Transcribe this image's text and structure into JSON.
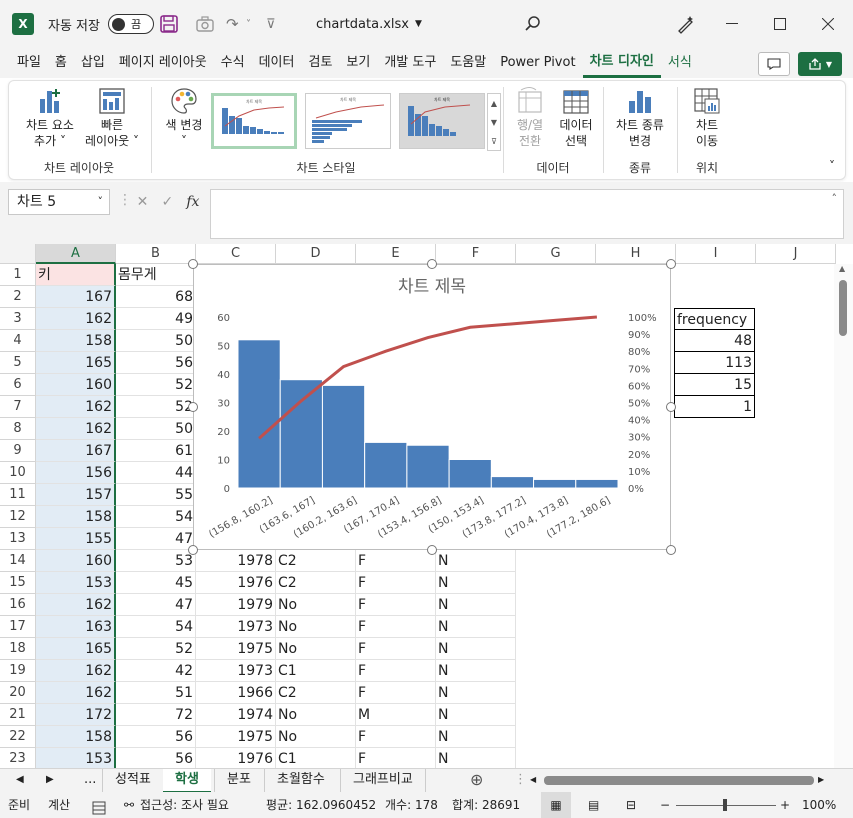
{
  "titlebar": {
    "autosave_label": "자동 저장",
    "autosave_state": "끔",
    "doc_title": "chartdata.xlsx",
    "logo": "X"
  },
  "menu": {
    "tabs": [
      "파일",
      "홈",
      "삽입",
      "페이지 레이아웃",
      "수식",
      "데이터",
      "검토",
      "보기",
      "개발 도구",
      "도움말",
      "Power Pivot",
      "차트 디자인",
      "서식"
    ],
    "active": "차트 디자인"
  },
  "ribbon": {
    "add_element": [
      "차트 요소",
      "추가 ˅"
    ],
    "quick_layout": [
      "빠른",
      "레이아웃 ˅"
    ],
    "layout_group": "차트 레이아웃",
    "change_color": [
      "색 변경",
      "˅"
    ],
    "style_group": "차트 스타일",
    "switch_row_col": [
      "행/열",
      "전환"
    ],
    "select_data": [
      "데이터",
      "선택"
    ],
    "data_group": "데이터",
    "change_type": [
      "차트 종류",
      "변경"
    ],
    "type_group": "종류",
    "move_chart": [
      "차트",
      "이동"
    ],
    "location_group": "위치",
    "thumb_title": "차트 제목"
  },
  "formula": {
    "namebox": "차트 5",
    "fx": "fx",
    "value": ""
  },
  "columns": [
    "A",
    "B",
    "C",
    "D",
    "E",
    "F",
    "G",
    "H",
    "I",
    "J"
  ],
  "rows": [
    {
      "n": "1",
      "A": "키",
      "B": "몸무게",
      "C": "",
      "D": "",
      "E": "",
      "F": ""
    },
    {
      "n": "2",
      "A": "167",
      "B": "68",
      "C": "",
      "D": "",
      "E": "",
      "F": ""
    },
    {
      "n": "3",
      "A": "162",
      "B": "49",
      "C": "",
      "D": "",
      "E": "",
      "F": ""
    },
    {
      "n": "4",
      "A": "158",
      "B": "50",
      "C": "",
      "D": "",
      "E": "",
      "F": ""
    },
    {
      "n": "5",
      "A": "165",
      "B": "56",
      "C": "",
      "D": "",
      "E": "",
      "F": ""
    },
    {
      "n": "6",
      "A": "160",
      "B": "52",
      "C": "",
      "D": "",
      "E": "",
      "F": ""
    },
    {
      "n": "7",
      "A": "162",
      "B": "52",
      "C": "",
      "D": "",
      "E": "",
      "F": ""
    },
    {
      "n": "8",
      "A": "162",
      "B": "50",
      "C": "",
      "D": "",
      "E": "",
      "F": ""
    },
    {
      "n": "9",
      "A": "167",
      "B": "61",
      "C": "",
      "D": "",
      "E": "",
      "F": ""
    },
    {
      "n": "10",
      "A": "156",
      "B": "44",
      "C": "",
      "D": "",
      "E": "",
      "F": ""
    },
    {
      "n": "11",
      "A": "157",
      "B": "55",
      "C": "",
      "D": "",
      "E": "",
      "F": ""
    },
    {
      "n": "12",
      "A": "158",
      "B": "54",
      "C": "",
      "D": "",
      "E": "",
      "F": ""
    },
    {
      "n": "13",
      "A": "155",
      "B": "47",
      "C": "",
      "D": "",
      "E": "",
      "F": ""
    },
    {
      "n": "14",
      "A": "160",
      "B": "53",
      "C": "1978",
      "D": "C2",
      "E": "F",
      "F": "N"
    },
    {
      "n": "15",
      "A": "153",
      "B": "45",
      "C": "1976",
      "D": "C2",
      "E": "F",
      "F": "N"
    },
    {
      "n": "16",
      "A": "162",
      "B": "47",
      "C": "1979",
      "D": "No",
      "E": "F",
      "F": "N"
    },
    {
      "n": "17",
      "A": "163",
      "B": "54",
      "C": "1973",
      "D": "No",
      "E": "F",
      "F": "N"
    },
    {
      "n": "18",
      "A": "165",
      "B": "52",
      "C": "1975",
      "D": "No",
      "E": "F",
      "F": "N"
    },
    {
      "n": "19",
      "A": "162",
      "B": "42",
      "C": "1973",
      "D": "C1",
      "E": "F",
      "F": "N"
    },
    {
      "n": "20",
      "A": "162",
      "B": "51",
      "C": "1966",
      "D": "C2",
      "E": "F",
      "F": "N"
    },
    {
      "n": "21",
      "A": "172",
      "B": "72",
      "C": "1974",
      "D": "No",
      "E": "M",
      "F": "N"
    },
    {
      "n": "22",
      "A": "158",
      "B": "56",
      "C": "1975",
      "D": "No",
      "E": "F",
      "F": "N"
    },
    {
      "n": "23",
      "A": "153",
      "B": "56",
      "C": "1976",
      "D": "C1",
      "E": "F",
      "F": "N"
    }
  ],
  "freq_table": {
    "header": "frequency",
    "values": [
      "48",
      "113",
      "15",
      "1"
    ]
  },
  "chart_data": {
    "type": "bar",
    "title": "차트 제목",
    "categories": [
      "(156.8, 160.2]",
      "(163.6, 167]",
      "(160.2, 163.6]",
      "(167, 170.4]",
      "(153.4, 156.8]",
      "(150, 153.4]",
      "(173.8, 177.2]",
      "(170.4, 173.8]",
      "(177.2, 180.6]"
    ],
    "series": [
      {
        "values": [
          52,
          38,
          36,
          16,
          15,
          10,
          4,
          3,
          3
        ],
        "color": "#4a7ebb"
      },
      {
        "type": "line",
        "axis": "secondary",
        "values": [
          29,
          51,
          71,
          80,
          88,
          94,
          96,
          98,
          100
        ],
        "color": "#c0504d"
      }
    ],
    "ylim": [
      0,
      60
    ],
    "yticks": [
      "0",
      "10",
      "20",
      "30",
      "40",
      "50",
      "60"
    ],
    "y2lim": [
      0,
      100
    ],
    "y2ticks": [
      "0%",
      "10%",
      "20%",
      "30%",
      "40%",
      "50%",
      "60%",
      "70%",
      "80%",
      "90%",
      "100%"
    ]
  },
  "sheets": {
    "tabs": [
      "성적표",
      "학생",
      "분포",
      "초월함수",
      "그래프비교"
    ],
    "active": "학생",
    "ellipsis": "..."
  },
  "status": {
    "ready": "준비",
    "calc": "계산",
    "accessibility": "접근성: 조사 필요",
    "average": "평균: 162.0960452",
    "count": "개수: 178",
    "sum": "합계: 28691",
    "zoom": "100%"
  }
}
